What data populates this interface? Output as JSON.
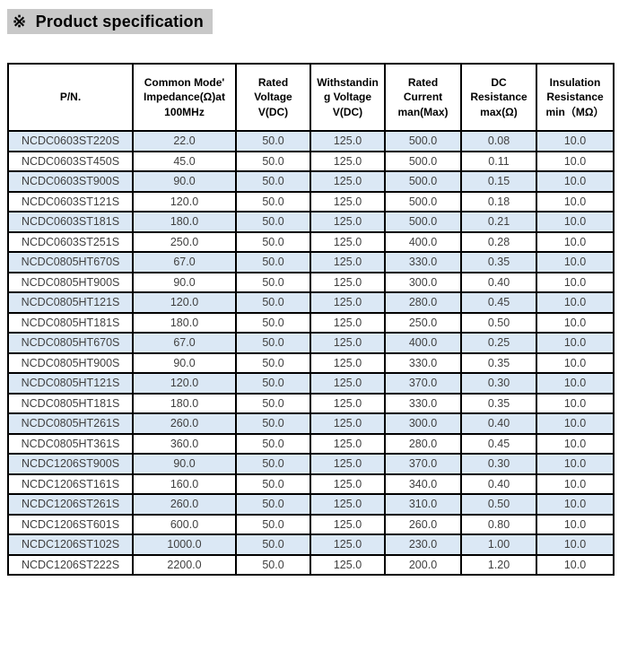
{
  "page": {
    "title": "※  Product specification"
  },
  "colors": {
    "title_highlight": "#c8c8c8",
    "row_alternate": "#dbe8f5",
    "border": "#000000",
    "data_text": "#3f3f3f"
  },
  "table": {
    "columns": [
      {
        "key": "pn",
        "label": "P/N."
      },
      {
        "key": "impedance",
        "label": "Common Mode'\nImpedance(Ω)at\n100MHz"
      },
      {
        "key": "rated_voltage",
        "label": "Rated\nVoltage\nV(DC)"
      },
      {
        "key": "withstanding_voltage",
        "label": "Withstandin\ng Voltage\nV(DC)"
      },
      {
        "key": "rated_current",
        "label": "Rated\nCurrent\nman(Max)"
      },
      {
        "key": "dc_resistance",
        "label": "DC\nResistance\nmax(Ω)"
      },
      {
        "key": "insulation_resistance",
        "label": "Insulation\nResistance\nmin（MΩ）"
      }
    ],
    "rows": [
      [
        "NCDC0603ST220S",
        "22.0",
        "50.0",
        "125.0",
        "500.0",
        "0.08",
        "10.0"
      ],
      [
        "NCDC0603ST450S",
        "45.0",
        "50.0",
        "125.0",
        "500.0",
        "0.11",
        "10.0"
      ],
      [
        "NCDC0603ST900S",
        "90.0",
        "50.0",
        "125.0",
        "500.0",
        "0.15",
        "10.0"
      ],
      [
        "NCDC0603ST121S",
        "120.0",
        "50.0",
        "125.0",
        "500.0",
        "0.18",
        "10.0"
      ],
      [
        "NCDC0603ST181S",
        "180.0",
        "50.0",
        "125.0",
        "500.0",
        "0.21",
        "10.0"
      ],
      [
        "NCDC0603ST251S",
        "250.0",
        "50.0",
        "125.0",
        "400.0",
        "0.28",
        "10.0"
      ],
      [
        "NCDC0805HT670S",
        "67.0",
        "50.0",
        "125.0",
        "330.0",
        "0.35",
        "10.0"
      ],
      [
        "NCDC0805HT900S",
        "90.0",
        "50.0",
        "125.0",
        "300.0",
        "0.40",
        "10.0"
      ],
      [
        "NCDC0805HT121S",
        "120.0",
        "50.0",
        "125.0",
        "280.0",
        "0.45",
        "10.0"
      ],
      [
        "NCDC0805HT181S",
        "180.0",
        "50.0",
        "125.0",
        "250.0",
        "0.50",
        "10.0"
      ],
      [
        "NCDC0805HT670S",
        "67.0",
        "50.0",
        "125.0",
        "400.0",
        "0.25",
        "10.0"
      ],
      [
        "NCDC0805HT900S",
        "90.0",
        "50.0",
        "125.0",
        "330.0",
        "0.35",
        "10.0"
      ],
      [
        "NCDC0805HT121S",
        "120.0",
        "50.0",
        "125.0",
        "370.0",
        "0.30",
        "10.0"
      ],
      [
        "NCDC0805HT181S",
        "180.0",
        "50.0",
        "125.0",
        "330.0",
        "0.35",
        "10.0"
      ],
      [
        "NCDC0805HT261S",
        "260.0",
        "50.0",
        "125.0",
        "300.0",
        "0.40",
        "10.0"
      ],
      [
        "NCDC0805HT361S",
        "360.0",
        "50.0",
        "125.0",
        "280.0",
        "0.45",
        "10.0"
      ],
      [
        "NCDC1206ST900S",
        "90.0",
        "50.0",
        "125.0",
        "370.0",
        "0.30",
        "10.0"
      ],
      [
        "NCDC1206ST161S",
        "160.0",
        "50.0",
        "125.0",
        "340.0",
        "0.40",
        "10.0"
      ],
      [
        "NCDC1206ST261S",
        "260.0",
        "50.0",
        "125.0",
        "310.0",
        "0.50",
        "10.0"
      ],
      [
        "NCDC1206ST601S",
        "600.0",
        "50.0",
        "125.0",
        "260.0",
        "0.80",
        "10.0"
      ],
      [
        "NCDC1206ST102S",
        "1000.0",
        "50.0",
        "125.0",
        "230.0",
        "1.00",
        "10.0"
      ],
      [
        "NCDC1206ST222S",
        "2200.0",
        "50.0",
        "125.0",
        "200.0",
        "1.20",
        "10.0"
      ]
    ]
  }
}
